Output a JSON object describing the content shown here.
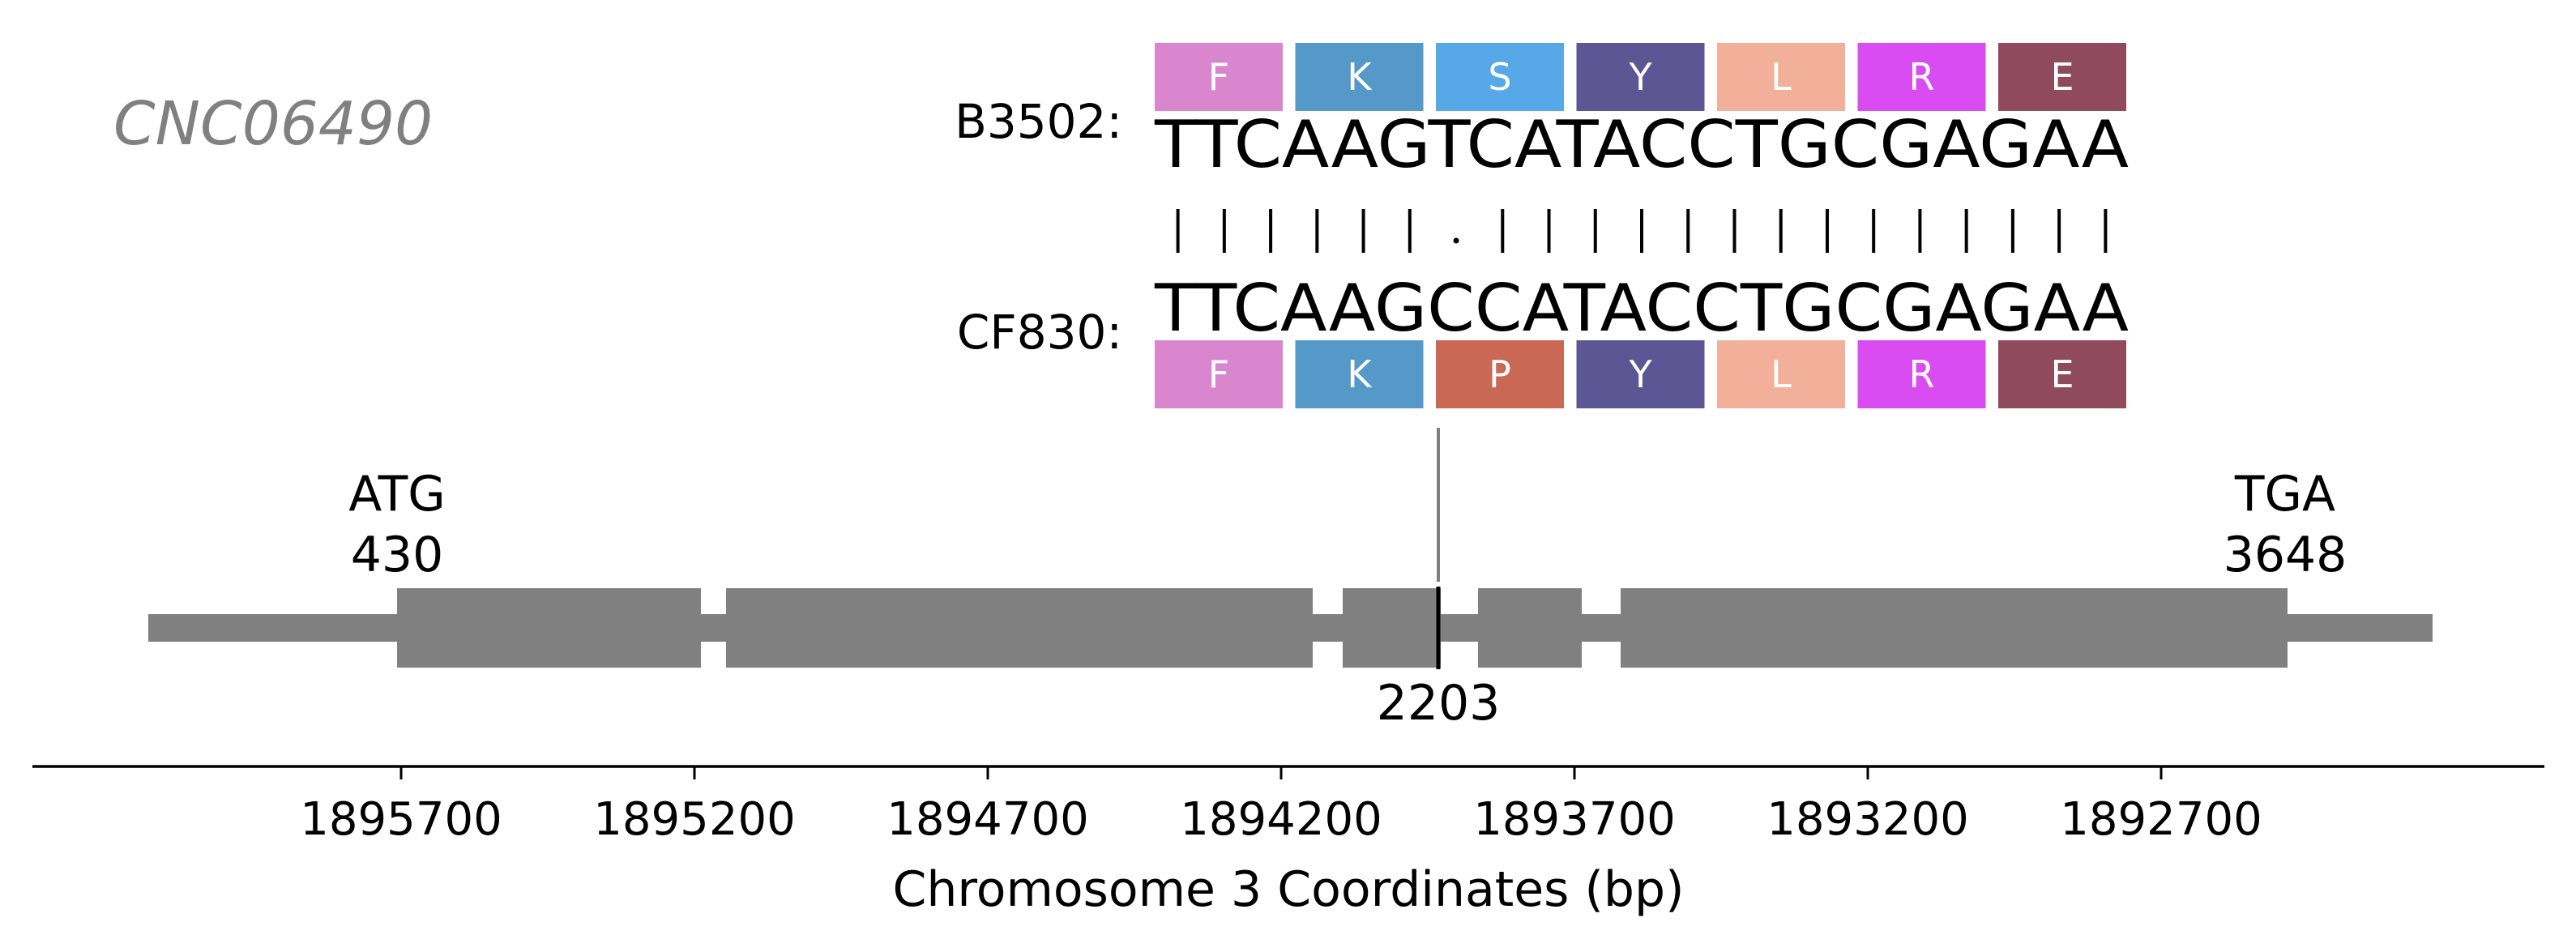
{
  "gene_id": "CNC06490",
  "strains": {
    "top": {
      "label": "B3502:",
      "sequence": "TTCAAGTCATACCTGCGAGAA",
      "amino_acids": [
        "F",
        "K",
        "S",
        "Y",
        "L",
        "R",
        "E"
      ],
      "aa_colors": [
        "#D986CF",
        "#5499C7",
        "#56A8E6",
        "#5C5694",
        "#F2B09A",
        "#D94CF2",
        "#8F4A5E"
      ]
    },
    "bottom": {
      "label": "CF830:",
      "sequence": "TTCAAGCCATACCTGCGAGAA",
      "amino_acids": [
        "F",
        "K",
        "P",
        "Y",
        "L",
        "R",
        "E"
      ],
      "aa_colors": [
        "#D986CF",
        "#5499C7",
        "#C96955",
        "#5C5694",
        "#F2B09A",
        "#D94CF2",
        "#8F4A5E"
      ]
    }
  },
  "alignment": [
    "|",
    "|",
    "|",
    "|",
    "|",
    "|",
    ".",
    "|",
    "|",
    "|",
    "|",
    "|",
    "|",
    "|",
    "|",
    "|",
    "|",
    "|",
    "|",
    "|",
    "|"
  ],
  "gene_model": {
    "start_codon": "ATG",
    "start_position": "430",
    "stop_codon": "TGA",
    "stop_position": "3648",
    "variant_position": "2203",
    "feature_color": "#808080"
  },
  "chart_data": {
    "type": "gene-structure",
    "xlabel": "Chromosome 3 Coordinates (bp)",
    "x_ticks": [
      "1895700",
      "1895200",
      "1894700",
      "1894200",
      "1893700",
      "1893200",
      "1892700"
    ],
    "axis_reversed": true
  }
}
